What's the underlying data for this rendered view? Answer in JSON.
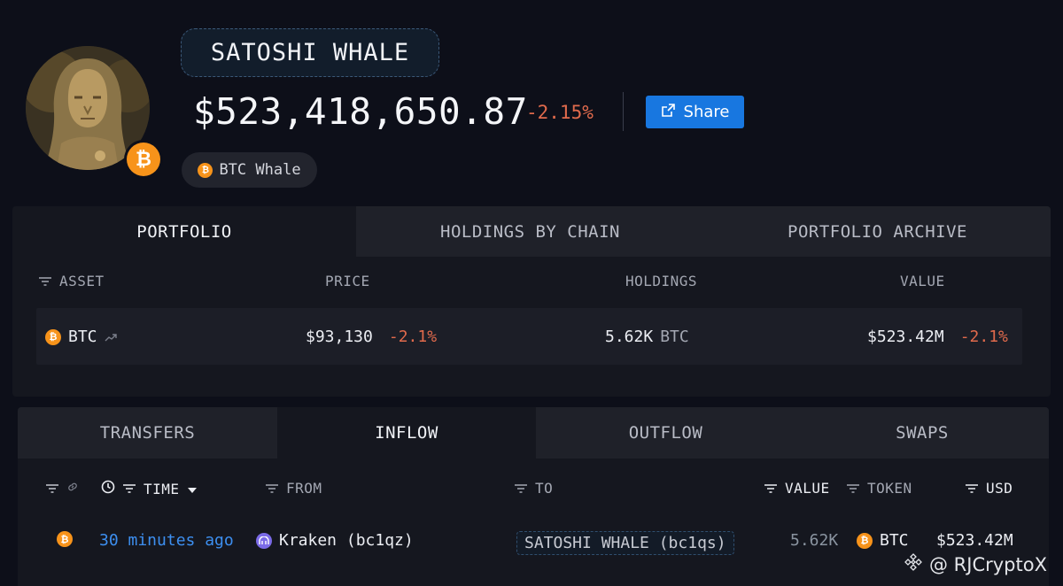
{
  "profile": {
    "name": "SATOSHI WHALE",
    "balance": "$523,418,650.87",
    "balance_change": "-2.15%",
    "share_label": "Share",
    "tag": "BTC Whale",
    "badge_icon": "bitcoin-icon"
  },
  "portfolio_tabs": [
    "PORTFOLIO",
    "HOLDINGS BY CHAIN",
    "PORTFOLIO ARCHIVE"
  ],
  "portfolio_columns": [
    "ASSET",
    "PRICE",
    "HOLDINGS",
    "VALUE"
  ],
  "portfolio_rows": [
    {
      "asset": "BTC",
      "price": "$93,130",
      "price_change": "-2.1%",
      "holdings": "5.62K",
      "holdings_unit": "BTC",
      "value": "$523.42M",
      "value_change": "-2.1%"
    }
  ],
  "transfer_tabs": [
    "TRANSFERS",
    "INFLOW",
    "OUTFLOW",
    "SWAPS"
  ],
  "transfer_columns": {
    "time": "TIME",
    "from": "FROM",
    "to": "TO",
    "value": "VALUE",
    "token": "TOKEN",
    "usd": "USD"
  },
  "transfer_rows": [
    {
      "time": "30 minutes ago",
      "from": "Kraken (bc1qz)",
      "to": "SATOSHI WHALE (bc1qs)",
      "value": "5.62K",
      "token": "BTC",
      "usd": "$523.42M"
    }
  ],
  "watermark": "@ RJCryptoX",
  "colors": {
    "background": "#0d0f19",
    "accent_blue": "#1877e0",
    "negative": "#e06a4c",
    "bitcoin": "#f7931a",
    "link": "#3d8ff0"
  }
}
